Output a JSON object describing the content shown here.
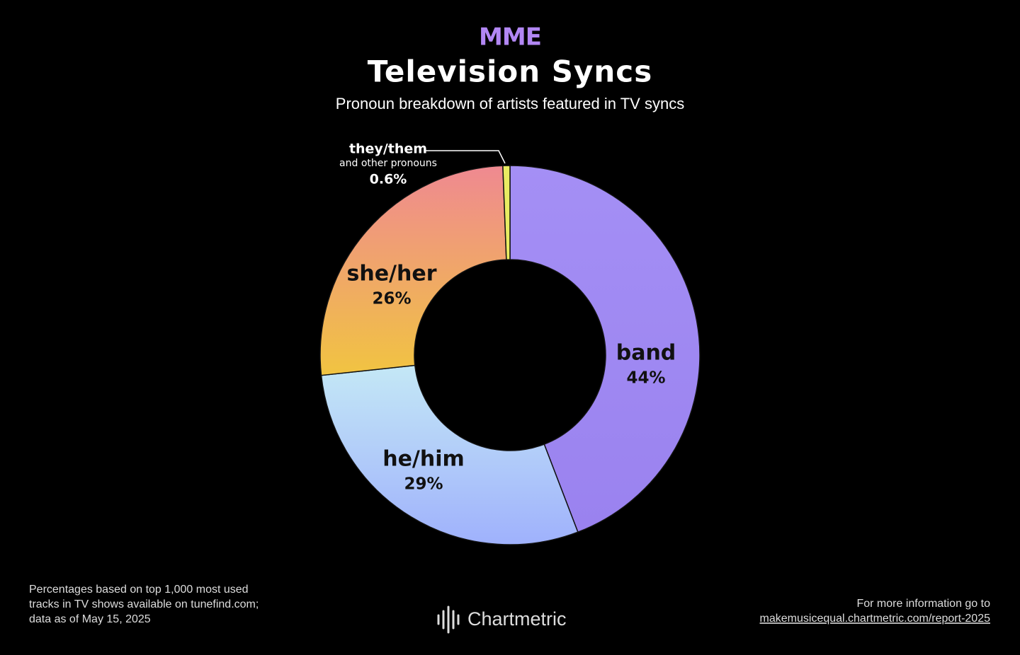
{
  "chart_data": {
    "type": "donut",
    "brand": "MME",
    "title": "Television Syncs",
    "subtitle": "Pronoun breakdown of artists featured in TV syncs",
    "categories": [
      "band",
      "he/him",
      "she/her",
      "they/them"
    ],
    "category_notes": [
      null,
      null,
      null,
      "and other pronouns"
    ],
    "values": [
      44,
      29,
      26,
      0.6
    ],
    "value_labels": [
      "44%",
      "29%",
      "26%",
      "0.6%"
    ],
    "colors": [
      [
        "#a48ff5",
        "#9a82ef"
      ],
      [
        "#c4e8f6",
        "#9fb1fc"
      ],
      [
        "#ef8991",
        "#f1c441"
      ],
      [
        "#e9ec62",
        "#e9ec62"
      ]
    ],
    "footnote": [
      "Percentages based on top 1,000 most used",
      "tracks in TV shows available on tunefind.com;",
      "data as of May 15, 2025"
    ],
    "source": "Chartmetric",
    "info_text": "For more information go to",
    "link": "makemusicequal.chartmetric.com/report-2025"
  }
}
